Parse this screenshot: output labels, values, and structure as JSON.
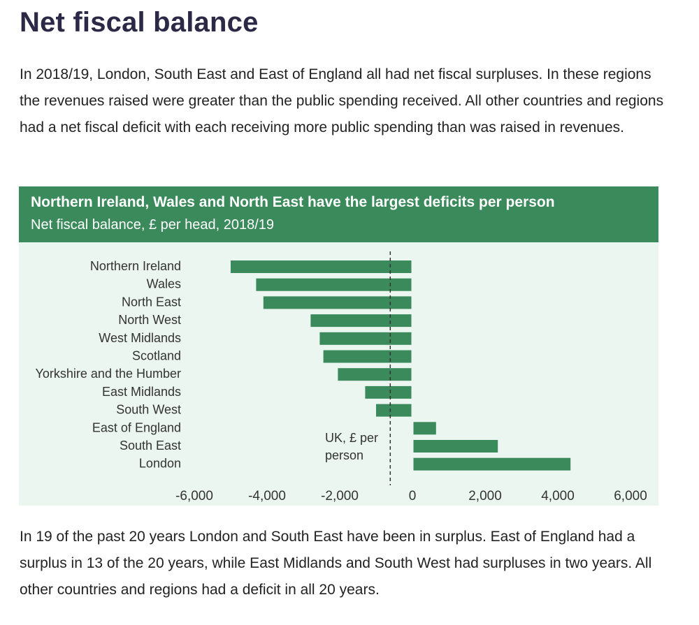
{
  "page": {
    "title": "Net fiscal balance",
    "intro": "In 2018/19, London, South East and East of England all had net fiscal surpluses. In these regions the revenues raised were greater than the public spending received. All other countries and regions had a net fiscal deficit with each receiving more public spending than was raised in revenues.",
    "outro": "In 19 of the past 20 years London and South East have been in surplus. East of England had a surplus in 13 of the 20 years, while East Midlands and South West had surpluses in two years. All other countries and regions had a deficit in all 20 years."
  },
  "colors": {
    "header_bg": "#3a8a5b",
    "bar": "#3a8a5b",
    "plot_bg": "#ebf6f0"
  },
  "chart_data": {
    "type": "bar",
    "orientation": "horizontal",
    "title": "Northern Ireland, Wales and North East have the largest deficits per person",
    "subtitle": "Net fiscal balance, £ per head, 2018/19",
    "categories": [
      "Northern Ireland",
      "Wales",
      "North East",
      "North West",
      "West Midlands",
      "Scotland",
      "Yorkshire and the Humber",
      "East Midlands",
      "South West",
      "East of England",
      "South East",
      "London"
    ],
    "values": [
      -5000,
      -4300,
      -4100,
      -2800,
      -2550,
      -2450,
      -2050,
      -1300,
      -1000,
      650,
      2350,
      4350
    ],
    "xlim": [
      -6000,
      6000
    ],
    "x_ticks": [
      -6000,
      -4000,
      -2000,
      0,
      2000,
      4000,
      6000
    ],
    "x_tick_labels": [
      "-6,000",
      "-4,000",
      "-2,000",
      "0",
      "2,000",
      "4,000",
      "6,000"
    ],
    "reference_line": {
      "value": -600,
      "style": "dashed",
      "label_lines": [
        "UK, £ per",
        "person"
      ]
    },
    "grid": false,
    "legend": "none"
  }
}
